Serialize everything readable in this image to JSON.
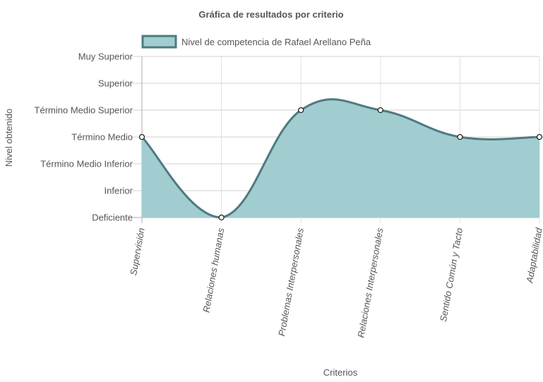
{
  "chart_data": {
    "type": "area",
    "title": "Gráfica de resultados por criterio",
    "xlabel": "Criterios",
    "ylabel": "Nivel obtenido",
    "categories": [
      "Supervisión",
      "Relaciones humanas",
      "Problemas Interpersonales",
      "Relaciones Interpersonales",
      "Sentido Común y Tacto",
      "Adaptabilidad"
    ],
    "y_levels": [
      "Deficiente",
      "Inferior",
      "Término Medio Inferior",
      "Término Medio",
      "Término Medio Superior",
      "Superior",
      "Muy Superior"
    ],
    "ylim": [
      0,
      6
    ],
    "legend_position": "top",
    "grid": true,
    "series": [
      {
        "name": "Nivel de competencia de Rafael Arellano Peña",
        "values": [
          3,
          0,
          4,
          4,
          3,
          3
        ]
      }
    ],
    "colors": {
      "fill": "#a2cdd0",
      "stroke": "#4f7a80",
      "grid": "#cccccc",
      "text": "#555555"
    }
  }
}
